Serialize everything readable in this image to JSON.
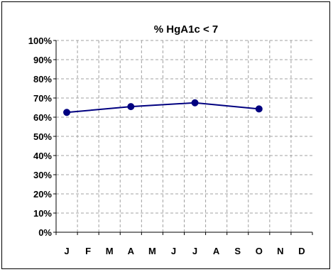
{
  "chart_data": {
    "type": "line",
    "title": "%  HgA1c < 7",
    "categories": [
      "J",
      "F",
      "M",
      "A",
      "M",
      "J",
      "J",
      "A",
      "S",
      "O",
      "N",
      "D"
    ],
    "series": [
      {
        "values": [
          62.5,
          null,
          null,
          65.5,
          null,
          null,
          67.5,
          null,
          null,
          64.3,
          null,
          null
        ]
      }
    ],
    "ylim": [
      0,
      100
    ],
    "yticks": [
      "0%",
      "10%",
      "20%",
      "30%",
      "40%",
      "50%",
      "60%",
      "70%",
      "80%",
      "90%",
      "100%"
    ],
    "grid": true,
    "line_color": "#000080",
    "marker_color": "#000080"
  }
}
